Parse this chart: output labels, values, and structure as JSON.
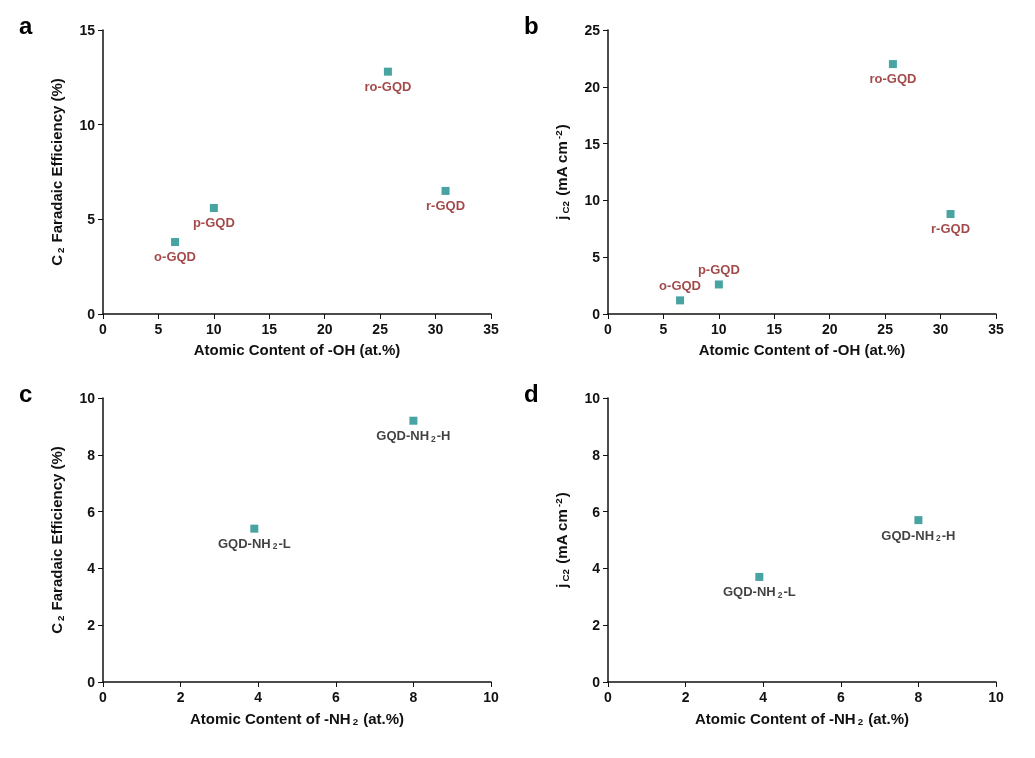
{
  "chart_data": [
    {
      "type": "scatter",
      "title": "a",
      "xlabel": "Atomic Content of -OH (at.%)",
      "ylabel": "C$_{2}$ Faradaic Efficiency (%)",
      "x": [
        6.5,
        10,
        25.7,
        30.9
      ],
      "values": [
        3.8,
        5.6,
        12.8,
        6.5
      ],
      "color": "#1a8c8c",
      "marker": "square",
      "xlim": [
        0,
        35
      ],
      "xticks": [
        0,
        5,
        10,
        15,
        20,
        25,
        30,
        35
      ],
      "ylim": [
        0,
        15
      ],
      "yticks": [
        0,
        5,
        10,
        15
      ],
      "annotations": [
        {
          "text": "o-GQD",
          "x": 6.5,
          "y": 3.8
        },
        {
          "text": "p-GQD",
          "x": 10,
          "y": 5.6
        },
        {
          "text": "ro-GQD",
          "x": 25.7,
          "y": 12.8
        },
        {
          "text": "r-GQD",
          "x": 30.9,
          "y": 6.5
        }
      ]
    },
    {
      "type": "scatter",
      "title": "b",
      "xlabel": "Atomic Content of -OH (at.%)",
      "ylabel": "j$_{C2}$ (mA cm$^{-2}$)",
      "x": [
        6.5,
        10,
        25.7,
        30.9
      ],
      "values": [
        1.2,
        2.6,
        22,
        8.8
      ],
      "color": "#1a8c8c",
      "marker": "square",
      "xlim": [
        0,
        35
      ],
      "xticks": [
        0,
        5,
        10,
        15,
        20,
        25,
        30,
        35
      ],
      "ylim": [
        0,
        25
      ],
      "yticks": [
        0,
        5,
        10,
        15,
        20,
        25
      ],
      "annotations": [
        {
          "text": "o-GQD",
          "x": 6.5,
          "y": 1.2
        },
        {
          "text": "p-GQD",
          "x": 10,
          "y": 2.6
        },
        {
          "text": "ro-GQD",
          "x": 25.7,
          "y": 22
        },
        {
          "text": "r-GQD",
          "x": 30.9,
          "y": 8.8
        }
      ]
    },
    {
      "type": "scatter",
      "title": "c",
      "xlabel": "Atomic Content of -NH$_{2}$ (at.%)",
      "ylabel": "C$_{2}$ Faradaic Efficiency (%)",
      "x": [
        3.9,
        8
      ],
      "values": [
        5.4,
        9.2
      ],
      "color": "#1a8c8c",
      "marker": "square",
      "xlim": [
        0,
        10
      ],
      "xticks": [
        0,
        2,
        4,
        6,
        8,
        10
      ],
      "ylim": [
        0,
        10
      ],
      "yticks": [
        0,
        2,
        4,
        6,
        8,
        10
      ],
      "annotations": [
        {
          "text": "GQD-NH$_{2}$-L",
          "x": 3.9,
          "y": 5.4
        },
        {
          "text": "GQD-NH$_{2}$-H",
          "x": 8,
          "y": 9.2
        }
      ]
    },
    {
      "type": "scatter",
      "title": "d",
      "xlabel": "Atomic Content of -NH$_{2}$ (at.%)",
      "ylabel": "j$_{C2}$ (mA cm$^{-2}$)",
      "x": [
        3.9,
        8
      ],
      "values": [
        3.7,
        5.7
      ],
      "color": "#1a8c8c",
      "marker": "square",
      "xlim": [
        0,
        10
      ],
      "xticks": [
        0,
        2,
        4,
        6,
        8,
        10
      ],
      "ylim": [
        0,
        10
      ],
      "yticks": [
        0,
        2,
        4,
        6,
        8,
        10
      ],
      "annotations": [
        {
          "text": "GQD-NH$_{2}$-L",
          "x": 3.9,
          "y": 3.7
        },
        {
          "text": "GQD-NH$_{2}$-H",
          "x": 8,
          "y": 5.7
        }
      ]
    }
  ]
}
